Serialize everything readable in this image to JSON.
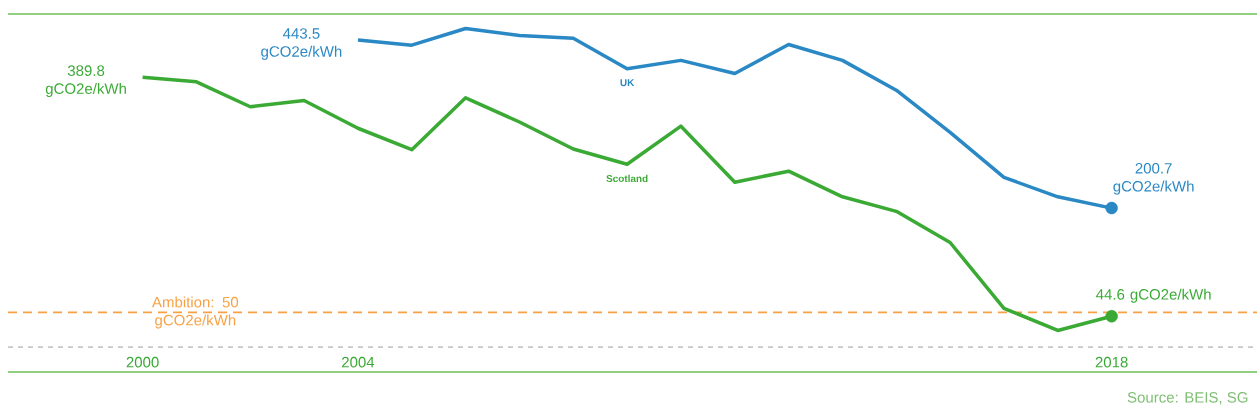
{
  "chart_data": {
    "type": "line",
    "x": [
      2000,
      2001,
      2002,
      2003,
      2004,
      2005,
      2006,
      2007,
      2008,
      2009,
      2010,
      2011,
      2012,
      2013,
      2014,
      2015,
      2016,
      2017,
      2018
    ],
    "xlim": [
      1997.5,
      2020.7
    ],
    "ylim": [
      -36,
      481
    ],
    "xticks": [
      2000,
      2004,
      2018
    ],
    "tick_labels": "x",
    "legend": false,
    "line_style": "solid",
    "marker": "none",
    "series": [
      {
        "name": "Scotland",
        "color": "#3aaa35",
        "values": [
          389.8,
          383,
          347,
          356,
          316,
          285,
          360,
          325,
          286,
          264,
          319,
          238,
          254,
          217,
          196,
          151,
          56,
          24,
          44.6
        ],
        "value_labels": [
          "389.8 gCO2e/kWh",
          null,
          null,
          null,
          null,
          null,
          null,
          null,
          null,
          null,
          null,
          null,
          null,
          null,
          null,
          null,
          null,
          null,
          "44.6 gCO2e/kWh"
        ]
      },
      {
        "name": "UK",
        "color": "#2a88c4",
        "x": [
          2004,
          2005,
          2006,
          2007,
          2008,
          2009,
          2010,
          2011,
          2012,
          2013,
          2014,
          2015,
          2016,
          2017,
          2018
        ],
        "values": [
          443.5,
          436,
          460,
          450,
          446,
          402,
          414,
          395,
          437,
          414,
          371,
          310,
          245,
          217,
          200.7
        ],
        "value_labels": [
          "443.5 gCO2e/kWh",
          null,
          null,
          null,
          null,
          null,
          null,
          null,
          null,
          null,
          null,
          null,
          null,
          null,
          "200.7 gCO2e/kWh"
        ]
      }
    ],
    "ref_lines": [
      {
        "axis": "y",
        "value": 50,
        "label": "Ambition: 50 gCO2e/kWh",
        "color": "#f7a144",
        "line_style": "dashed"
      },
      {
        "axis": "y",
        "value": 0,
        "color": "#c8c8c8",
        "line_style": "dotted"
      }
    ],
    "annotations": [
      "Source: BEIS, SG"
    ]
  }
}
